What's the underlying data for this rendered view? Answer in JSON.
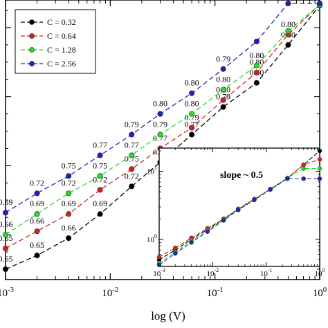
{
  "chart_data": [
    {
      "type": "line",
      "title": "",
      "xlabel": "log (V)",
      "ylabel": "",
      "x_scale": "log",
      "xlim": [
        0.001,
        1
      ],
      "ylim": [
        0.35,
        4.4
      ],
      "x_ticks": [
        0.001,
        0.01,
        0.1,
        1
      ],
      "x_tick_labels": [
        {
          "base": "10",
          "exp": "-3"
        },
        {
          "base": "10",
          "exp": "-2"
        },
        {
          "base": "10",
          "exp": "-1"
        },
        {
          "base": "10",
          "exp": "0"
        }
      ],
      "grid": false,
      "legend_position": "top-left",
      "series": [
        {
          "name": "C = 0.32",
          "color": "#000000",
          "x": [
            0.001,
            0.002,
            0.004,
            0.008,
            0.016,
            0.03,
            0.06,
            0.12,
            0.25,
            0.5,
            1
          ],
          "values": [
            0.5,
            0.7,
            0.95,
            1.3,
            1.7,
            2.05,
            2.45,
            2.85,
            3.2,
            3.75,
            4.32
          ],
          "labels": [
            "0.65",
            "0.65",
            "0.66",
            "0.69",
            "0.72",
            "0.75",
            "0.77",
            "0.79",
            "0.80",
            "0.80",
            ""
          ]
        },
        {
          "name": "C = 0.64",
          "color": "#cc2222",
          "x": [
            0.001,
            0.002,
            0.004,
            0.008,
            0.016,
            0.03,
            0.06,
            0.12,
            0.25,
            0.5,
            1
          ],
          "values": [
            0.8,
            1.05,
            1.3,
            1.65,
            1.95,
            2.25,
            2.55,
            2.95,
            3.35,
            3.9,
            4.33
          ],
          "labels": [
            "0.65",
            "0.66",
            "0.69",
            "0.72",
            "0.75",
            "0.77",
            "0.79",
            "0.80",
            "0.80",
            "0.80",
            ""
          ]
        },
        {
          "name": "C = 1.28",
          "color": "#22dd22",
          "x": [
            0.001,
            0.002,
            0.004,
            0.008,
            0.016,
            0.03,
            0.06,
            0.12,
            0.25,
            0.5,
            1
          ],
          "values": [
            1.0,
            1.3,
            1.6,
            1.85,
            2.15,
            2.45,
            2.75,
            3.1,
            3.45,
            3.95,
            4.33
          ],
          "labels": [
            "0.66",
            "0.69",
            "0.72",
            "0.75",
            "0.77",
            "0.79",
            "0.80",
            "0.80",
            "0.80",
            "",
            ""
          ]
        },
        {
          "name": "C = 2.56",
          "color": "#2222bb",
          "x": [
            0.001,
            0.002,
            0.004,
            0.008,
            0.016,
            0.03,
            0.06,
            0.12,
            0.25,
            0.5,
            1
          ],
          "values": [
            1.32,
            1.6,
            1.85,
            2.15,
            2.45,
            2.75,
            3.05,
            3.4,
            3.8,
            4.35,
            4.35
          ],
          "labels": [
            "0.69",
            "0.72",
            "0.75",
            "0.77",
            "0.79",
            "0.80",
            "0.80",
            "0.79",
            "",
            "",
            ""
          ]
        }
      ]
    },
    {
      "type": "line",
      "title": "",
      "x_scale": "log",
      "y_scale": "log",
      "xlim": [
        0.001,
        1
      ],
      "ylim": [
        0.4,
        22
      ],
      "x_ticks": [
        0.001,
        0.01,
        0.1,
        1
      ],
      "x_tick_labels": [
        {
          "base": "10",
          "exp": "-3"
        },
        {
          "base": "10",
          "exp": "-2"
        },
        {
          "base": "10",
          "exp": "-1"
        },
        {
          "base": "10",
          "exp": "0"
        }
      ],
      "y_ticks": [
        1,
        10
      ],
      "y_tick_labels": [
        {
          "base": "10",
          "exp": "0"
        },
        {
          "base": "10",
          "exp": "1"
        }
      ],
      "annotation": "slope ~ 0.5",
      "grid": false,
      "series": [
        {
          "name": "C = 0.32",
          "color": "#000000",
          "x": [
            0.001,
            0.002,
            0.004,
            0.008,
            0.016,
            0.03,
            0.06,
            0.12,
            0.25,
            0.5,
            1
          ],
          "values": [
            0.5,
            0.7,
            1.0,
            1.4,
            2.0,
            2.8,
            3.9,
            5.5,
            8.0,
            12.5,
            20
          ]
        },
        {
          "name": "C = 0.64",
          "color": "#cc2222",
          "x": [
            0.001,
            0.002,
            0.004,
            0.008,
            0.016,
            0.03,
            0.06,
            0.12,
            0.25,
            0.5,
            1
          ],
          "values": [
            0.55,
            0.75,
            1.05,
            1.45,
            2.0,
            2.8,
            3.9,
            5.5,
            8.0,
            12.5,
            15
          ]
        },
        {
          "name": "C = 1.28",
          "color": "#22dd22",
          "x": [
            0.001,
            0.002,
            0.004,
            0.008,
            0.016,
            0.03,
            0.06,
            0.12,
            0.25,
            0.5,
            1
          ],
          "values": [
            0.45,
            0.65,
            0.95,
            1.35,
            1.95,
            2.75,
            3.85,
            5.5,
            8.0,
            11,
            11
          ]
        },
        {
          "name": "C = 2.56",
          "color": "#2222bb",
          "x": [
            0.001,
            0.002,
            0.004,
            0.008,
            0.016,
            0.03,
            0.06,
            0.12,
            0.25,
            0.5,
            1
          ],
          "values": [
            0.42,
            0.62,
            0.9,
            1.3,
            1.9,
            2.7,
            3.8,
            5.4,
            7.8,
            7.8,
            7.8
          ]
        }
      ]
    }
  ]
}
